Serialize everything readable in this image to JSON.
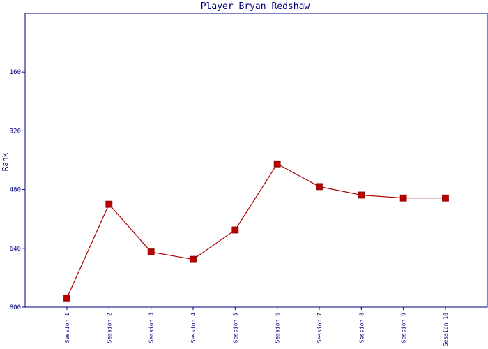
{
  "chart_data": {
    "type": "line",
    "title": "Player Bryan Redshaw",
    "xlabel": "",
    "ylabel": "Rank",
    "categories": [
      "Session 1",
      "Session 2",
      "Session 3",
      "Session 4",
      "Session 5",
      "Session 6",
      "Session 7",
      "Session 8",
      "Session 9",
      "Session 10"
    ],
    "series": [
      {
        "values": [
          775,
          520,
          650,
          670,
          590,
          410,
          472,
          495,
          503,
          503
        ]
      }
    ],
    "ylim": [
      800,
      0
    ],
    "y_inverted": true,
    "yticks": [
      160,
      320,
      480,
      640,
      800
    ],
    "grid": false,
    "legend": "none",
    "colors": {
      "axis": "#000080",
      "text": "#000080",
      "line": "#aa0000",
      "marker": "#bb0000",
      "marker_edge": "#880000"
    }
  }
}
